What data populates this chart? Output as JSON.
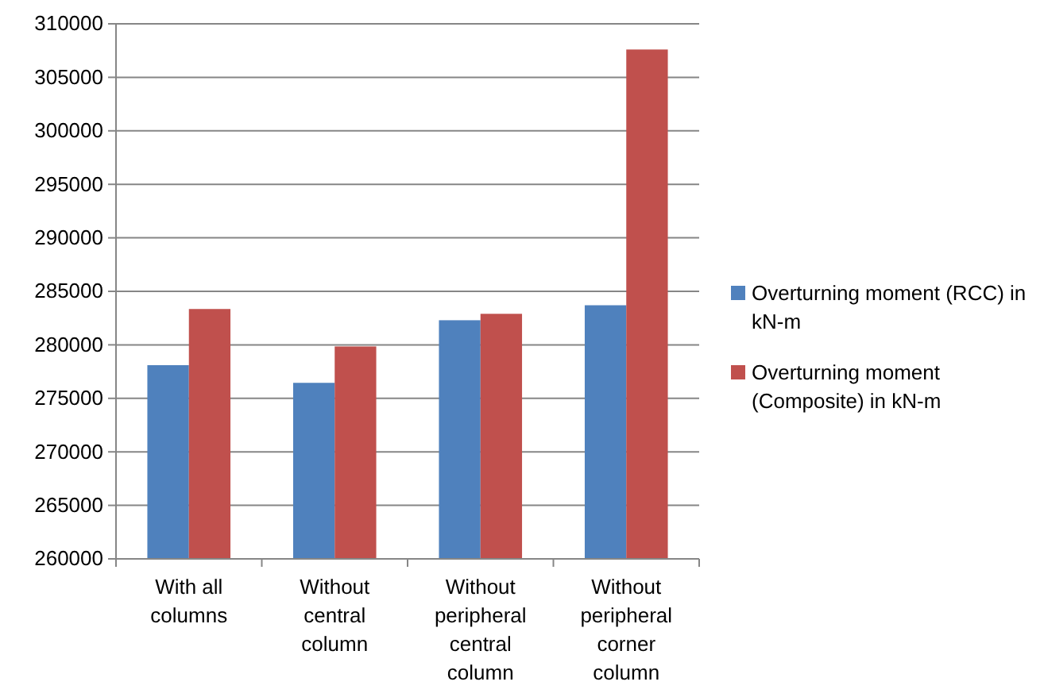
{
  "chart_data": {
    "type": "bar",
    "categories": [
      "With all columns",
      "Without central column",
      "Without peripheral central column",
      "Without peripheral corner column"
    ],
    "series": [
      {
        "name": "Overturning moment (RCC) in kN-m",
        "color": "#4f81bd",
        "values": [
          278100,
          276450,
          282300,
          283700
        ]
      },
      {
        "name": "Overturning moment (Composite) in kN-m",
        "color": "#c0504d",
        "values": [
          283350,
          279850,
          282900,
          307600
        ]
      }
    ],
    "ylim": [
      260000,
      310000
    ],
    "yticks": [
      260000,
      265000,
      270000,
      275000,
      280000,
      285000,
      290000,
      295000,
      300000,
      305000,
      310000
    ],
    "grid": "y",
    "legend": "right"
  }
}
